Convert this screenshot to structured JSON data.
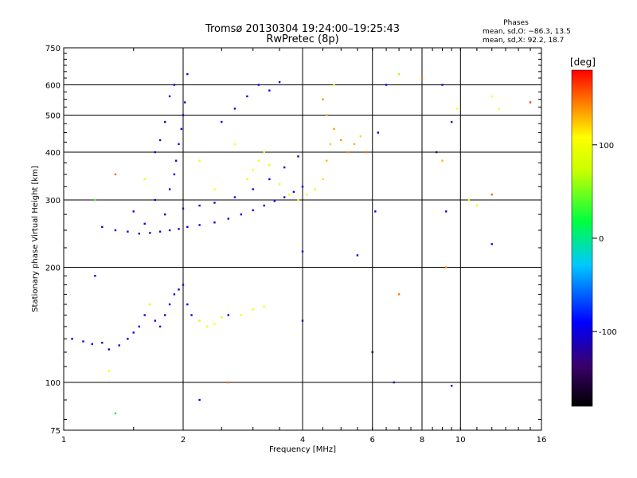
{
  "title": "Tromsø 20130304 19:24:00–19:25:43",
  "subtitle": "RwPretec (8p)",
  "phase_stats": {
    "heading": "Phases",
    "line_o": "mean, sd,O: −86.3, 13.5",
    "line_x": "mean, sd,X:  92.2, 18.7"
  },
  "colorbar": {
    "label": "[deg]",
    "ticks": [
      {
        "label": "100",
        "value": 100
      },
      {
        "label": "0",
        "value": 0
      },
      {
        "label": "-100",
        "value": -100
      }
    ],
    "range": [
      -180,
      180
    ]
  },
  "chart_data": {
    "type": "scatter",
    "xlabel": "Frequency [MHz]",
    "ylabel": "Stationary phase Virtual Height [km]",
    "x_scale": "log",
    "y_scale": "log",
    "xlim": [
      1,
      16
    ],
    "ylim": [
      75,
      750
    ],
    "x_ticks": [
      {
        "label": "1",
        "value": 1
      },
      {
        "label": "2",
        "value": 2
      },
      {
        "label": "4",
        "value": 4
      },
      {
        "label": "6",
        "value": 6
      },
      {
        "label": "8",
        "value": 8
      },
      {
        "label": "10",
        "value": 10
      },
      {
        "label": "16",
        "value": 16
      }
    ],
    "y_ticks": [
      {
        "label": "75",
        "value": 75
      },
      {
        "label": "100",
        "value": 100
      },
      {
        "label": "200",
        "value": 200
      },
      {
        "label": "300",
        "value": 300
      },
      {
        "label": "400",
        "value": 400
      },
      {
        "label": "500",
        "value": 500
      },
      {
        "label": "600",
        "value": 600
      },
      {
        "label": "750",
        "value": 750
      }
    ],
    "grid": true,
    "points": [
      [
        1.05,
        130,
        -95
      ],
      [
        1.12,
        128,
        -105
      ],
      [
        1.18,
        126,
        -100
      ],
      [
        1.25,
        127,
        -110
      ],
      [
        1.3,
        122,
        -105
      ],
      [
        1.38,
        125,
        -100
      ],
      [
        1.45,
        130,
        -95
      ],
      [
        1.5,
        135,
        -100
      ],
      [
        1.55,
        140,
        -95
      ],
      [
        1.6,
        150,
        -90
      ],
      [
        1.65,
        160,
        80
      ],
      [
        1.7,
        145,
        -100
      ],
      [
        1.75,
        140,
        -95
      ],
      [
        1.8,
        150,
        -105
      ],
      [
        1.85,
        160,
        -100
      ],
      [
        1.9,
        170,
        -95
      ],
      [
        1.95,
        175,
        -100
      ],
      [
        2.0,
        180,
        -105
      ],
      [
        2.05,
        160,
        -100
      ],
      [
        2.1,
        150,
        -95
      ],
      [
        2.2,
        145,
        90
      ],
      [
        2.3,
        140,
        100
      ],
      [
        2.4,
        142,
        110
      ],
      [
        2.5,
        148,
        95
      ],
      [
        2.6,
        150,
        -90
      ],
      [
        2.8,
        150,
        100
      ],
      [
        3.0,
        155,
        105
      ],
      [
        3.2,
        158,
        110
      ],
      [
        1.25,
        255,
        -100
      ],
      [
        1.35,
        250,
        -105
      ],
      [
        1.45,
        248,
        -100
      ],
      [
        1.55,
        245,
        -110
      ],
      [
        1.65,
        246,
        -105
      ],
      [
        1.75,
        248,
        -100
      ],
      [
        1.85,
        250,
        -105
      ],
      [
        1.95,
        252,
        -100
      ],
      [
        2.05,
        255,
        -105
      ],
      [
        2.2,
        258,
        -100
      ],
      [
        2.4,
        262,
        -95
      ],
      [
        2.6,
        268,
        -100
      ],
      [
        2.8,
        275,
        -105
      ],
      [
        3.0,
        282,
        -100
      ],
      [
        3.2,
        290,
        -95
      ],
      [
        3.4,
        298,
        -100
      ],
      [
        3.6,
        305,
        -105
      ],
      [
        3.8,
        315,
        -100
      ],
      [
        4.0,
        325,
        -95
      ],
      [
        1.6,
        260,
        -100
      ],
      [
        1.8,
        275,
        -105
      ],
      [
        2.0,
        285,
        -100
      ],
      [
        2.2,
        290,
        -95
      ],
      [
        2.4,
        295,
        -100
      ],
      [
        2.7,
        305,
        -105
      ],
      [
        3.0,
        320,
        -100
      ],
      [
        3.3,
        340,
        -95
      ],
      [
        3.6,
        365,
        -100
      ],
      [
        3.9,
        390,
        -105
      ],
      [
        1.5,
        280,
        -100
      ],
      [
        1.7,
        300,
        -95
      ],
      [
        1.85,
        320,
        -100
      ],
      [
        1.9,
        350,
        -105
      ],
      [
        1.92,
        380,
        -100
      ],
      [
        1.95,
        420,
        -95
      ],
      [
        1.98,
        460,
        -100
      ],
      [
        2.0,
        500,
        -105
      ],
      [
        2.02,
        540,
        -100
      ],
      [
        1.9,
        600,
        -95
      ],
      [
        1.85,
        560,
        -100
      ],
      [
        1.8,
        480,
        -105
      ],
      [
        1.75,
        430,
        -100
      ],
      [
        1.7,
        400,
        -95
      ],
      [
        2.05,
        640,
        -100
      ],
      [
        2.5,
        480,
        -100
      ],
      [
        2.7,
        520,
        -105
      ],
      [
        2.9,
        560,
        -100
      ],
      [
        3.1,
        600,
        -95
      ],
      [
        3.3,
        580,
        -100
      ],
      [
        3.5,
        610,
        -105
      ],
      [
        2.9,
        340,
        100
      ],
      [
        3.0,
        360,
        110
      ],
      [
        3.1,
        380,
        105
      ],
      [
        3.2,
        400,
        100
      ],
      [
        3.3,
        370,
        95
      ],
      [
        3.5,
        330,
        100
      ],
      [
        3.7,
        310,
        105
      ],
      [
        3.9,
        300,
        110
      ],
      [
        4.1,
        310,
        100
      ],
      [
        4.3,
        320,
        95
      ],
      [
        4.5,
        340,
        120
      ],
      [
        4.6,
        380,
        130
      ],
      [
        4.7,
        420,
        125
      ],
      [
        4.8,
        460,
        135
      ],
      [
        5.0,
        430,
        140
      ],
      [
        5.2,
        400,
        145
      ],
      [
        5.4,
        420,
        130
      ],
      [
        5.6,
        440,
        120
      ],
      [
        5.8,
        400,
        150
      ],
      [
        4.6,
        500,
        130
      ],
      [
        4.5,
        550,
        140
      ],
      [
        4.8,
        600,
        95
      ],
      [
        1.6,
        340,
        100
      ],
      [
        2.7,
        420,
        105
      ],
      [
        2.4,
        320,
        110
      ],
      [
        2.2,
        380,
        100
      ],
      [
        6.2,
        450,
        -100
      ],
      [
        6.5,
        600,
        -90
      ],
      [
        7.0,
        640,
        60
      ],
      [
        8.0,
        620,
        150
      ],
      [
        9.0,
        600,
        -95
      ],
      [
        9.5,
        480,
        -110
      ],
      [
        9.8,
        520,
        110
      ],
      [
        10.5,
        300,
        95
      ],
      [
        11.0,
        290,
        100
      ],
      [
        12.0,
        560,
        105
      ],
      [
        12.5,
        520,
        100
      ],
      [
        15.0,
        540,
        165
      ],
      [
        12.0,
        310,
        150
      ],
      [
        8.7,
        400,
        -150
      ],
      [
        9.0,
        380,
        130
      ],
      [
        9.2,
        200,
        140
      ],
      [
        9.2,
        280,
        -95
      ],
      [
        6.1,
        280,
        -100
      ],
      [
        6.0,
        120,
        -150
      ],
      [
        6.8,
        100,
        -120
      ],
      [
        7.0,
        170,
        150
      ],
      [
        12.0,
        230,
        -95
      ],
      [
        9.5,
        98,
        -110
      ],
      [
        5.5,
        215,
        -100
      ],
      [
        4.0,
        220,
        -100
      ],
      [
        4.0,
        145,
        -120
      ],
      [
        2.6,
        100,
        150
      ],
      [
        2.2,
        90,
        -95
      ],
      [
        1.35,
        83,
        10
      ],
      [
        1.3,
        107,
        105
      ],
      [
        1.2,
        300,
        40
      ],
      [
        1.2,
        190,
        -100
      ],
      [
        1.35,
        350,
        150
      ]
    ]
  }
}
